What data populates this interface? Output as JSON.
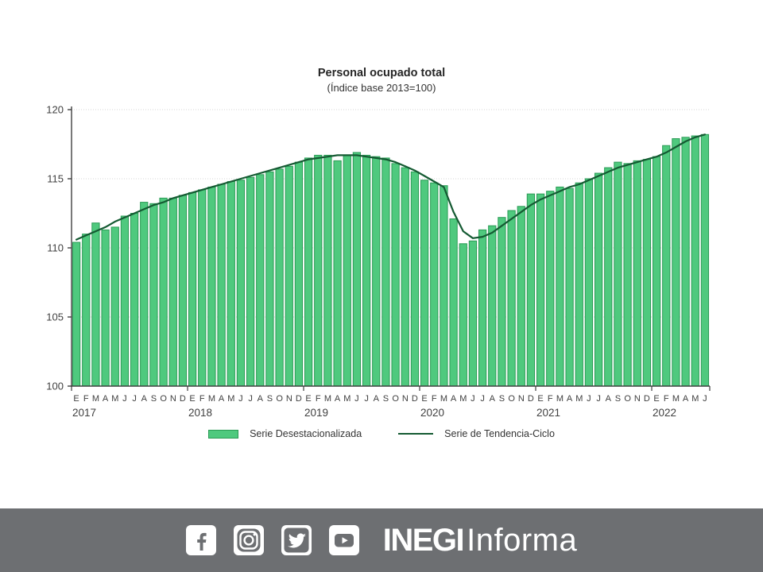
{
  "title": "Personal ocupado total",
  "subtitle": "(Índice base 2013=100)",
  "chart_data": {
    "type": "bar",
    "ylim": [
      100,
      120
    ],
    "yticks": [
      100,
      105,
      110,
      115,
      120
    ],
    "month_labels": [
      "E",
      "F",
      "M",
      "A",
      "M",
      "J",
      "J",
      "A",
      "S",
      "O",
      "N",
      "D"
    ],
    "year_groups": [
      {
        "label": "2017",
        "months": 12
      },
      {
        "label": "2018",
        "months": 12
      },
      {
        "label": "2019",
        "months": 12
      },
      {
        "label": "2020",
        "months": 12
      },
      {
        "label": "2021",
        "months": 12
      },
      {
        "label": "2022",
        "months": 6
      }
    ],
    "series": [
      {
        "name": "Serie Desestacionalizada",
        "type": "bar",
        "values": [
          110.4,
          111.0,
          111.8,
          111.3,
          111.5,
          112.3,
          112.5,
          113.3,
          113.2,
          113.6,
          113.6,
          113.8,
          114.0,
          114.2,
          114.4,
          114.6,
          114.8,
          114.9,
          115.1,
          115.3,
          115.5,
          115.7,
          115.9,
          116.2,
          116.5,
          116.7,
          116.7,
          116.3,
          116.7,
          116.9,
          116.7,
          116.6,
          116.5,
          116.1,
          115.8,
          115.5,
          114.9,
          114.7,
          114.5,
          112.1,
          110.3,
          110.5,
          111.3,
          111.6,
          112.2,
          112.7,
          113.0,
          113.9,
          113.9,
          114.1,
          114.4,
          114.3,
          114.7,
          115.0,
          115.4,
          115.8,
          116.2,
          116.1,
          116.3,
          116.4,
          116.6,
          117.4,
          117.9,
          118.0,
          118.1,
          118.2
        ]
      },
      {
        "name": "Serie de Tendencia-Ciclo",
        "type": "line",
        "values": [
          110.6,
          110.9,
          111.2,
          111.5,
          111.9,
          112.2,
          112.5,
          112.8,
          113.1,
          113.3,
          113.6,
          113.8,
          114.0,
          114.2,
          114.4,
          114.6,
          114.8,
          115.0,
          115.2,
          115.4,
          115.6,
          115.8,
          116.0,
          116.2,
          116.4,
          116.5,
          116.6,
          116.7,
          116.7,
          116.7,
          116.6,
          116.5,
          116.4,
          116.2,
          115.9,
          115.6,
          115.2,
          114.8,
          114.4,
          112.6,
          111.2,
          110.7,
          110.8,
          111.1,
          111.6,
          112.1,
          112.6,
          113.1,
          113.5,
          113.8,
          114.1,
          114.4,
          114.6,
          114.9,
          115.2,
          115.5,
          115.8,
          116.0,
          116.2,
          116.4,
          116.6,
          116.9,
          117.3,
          117.7,
          118.0,
          118.2
        ]
      }
    ]
  },
  "legend": {
    "bar_label": "Serie Desestacionalizada",
    "line_label": "Serie de Tendencia-Ciclo"
  },
  "footer": {
    "icons": [
      "facebook",
      "instagram",
      "twitter",
      "youtube"
    ],
    "brand_bold": "INEGI",
    "brand_light": "Informa"
  },
  "colors": {
    "bar_fill": "#4fc97e",
    "bar_stroke": "#2a9b55",
    "trend_line": "#145a32",
    "footer_bg": "#6d6f72",
    "footer_fg": "#ffffff"
  }
}
